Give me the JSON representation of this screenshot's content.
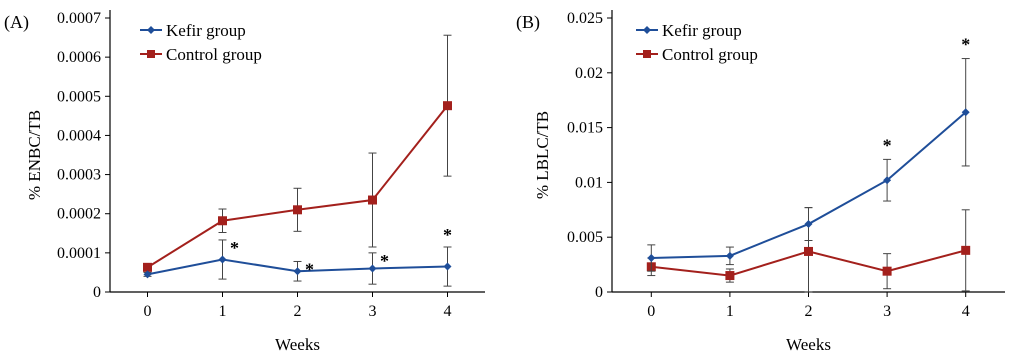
{
  "chart_data": [
    {
      "type": "line",
      "panel": "(A)",
      "xlabel": "Weeks",
      "ylabel": "% ENBC/TB",
      "x": [
        0,
        1,
        2,
        3,
        4
      ],
      "xlim": [
        -0.5,
        4.5
      ],
      "ylim": [
        0,
        0.0007
      ],
      "yticks": [
        "0",
        "0.0001",
        "0.0002",
        "0.0003",
        "0.0004",
        "0.0005",
        "0.0006",
        "0.0007"
      ],
      "xticks": [
        "0",
        "1",
        "2",
        "3",
        "4"
      ],
      "grid": false,
      "legend_position": "top-left",
      "series": [
        {
          "name": "Kefir group",
          "color": "#1f4e99",
          "marker": "diamond",
          "values": [
            4.5e-05,
            8.3e-05,
            5.3e-05,
            6e-05,
            6.5e-05
          ],
          "errors": [
            5e-06,
            5e-05,
            2.5e-05,
            4e-05,
            5e-05
          ]
        },
        {
          "name": "Control group",
          "color": "#a3201c",
          "marker": "square",
          "values": [
            6.3e-05,
            0.000182,
            0.00021,
            0.000235,
            0.000476
          ],
          "errors": [
            5e-06,
            3e-05,
            5.5e-05,
            0.00012,
            0.00018
          ]
        }
      ],
      "annotations": [
        {
          "x": 1,
          "text": "*"
        },
        {
          "x": 2,
          "text": "*"
        },
        {
          "x": 3,
          "text": "*"
        },
        {
          "x": 4,
          "text": "*"
        }
      ]
    },
    {
      "type": "line",
      "panel": "(B)",
      "xlabel": "Weeks",
      "ylabel": "% LBLC/TB",
      "x": [
        0,
        1,
        2,
        3,
        4
      ],
      "xlim": [
        -0.5,
        4.5
      ],
      "ylim": [
        0,
        0.025
      ],
      "yticks": [
        "0",
        "0.005",
        "0.01",
        "0.015",
        "0.02",
        "0.025"
      ],
      "xticks": [
        "0",
        "1",
        "2",
        "3",
        "4"
      ],
      "grid": false,
      "legend_position": "top-left",
      "series": [
        {
          "name": "Kefir group",
          "color": "#1f4e99",
          "marker": "diamond",
          "values": [
            0.0031,
            0.0033,
            0.0062,
            0.0102,
            0.0164
          ],
          "errors": [
            0.0012,
            0.0008,
            0.0015,
            0.0019,
            0.0049
          ]
        },
        {
          "name": "Control group",
          "color": "#a3201c",
          "marker": "square",
          "values": [
            0.0023,
            0.0015,
            0.0037,
            0.0019,
            0.0038
          ],
          "errors": [
            0.0008,
            0.0006,
            0.004,
            0.0016,
            0.0037
          ]
        }
      ],
      "annotations": [
        {
          "x": 3,
          "text": "*"
        },
        {
          "x": 4,
          "text": "*"
        }
      ]
    }
  ]
}
